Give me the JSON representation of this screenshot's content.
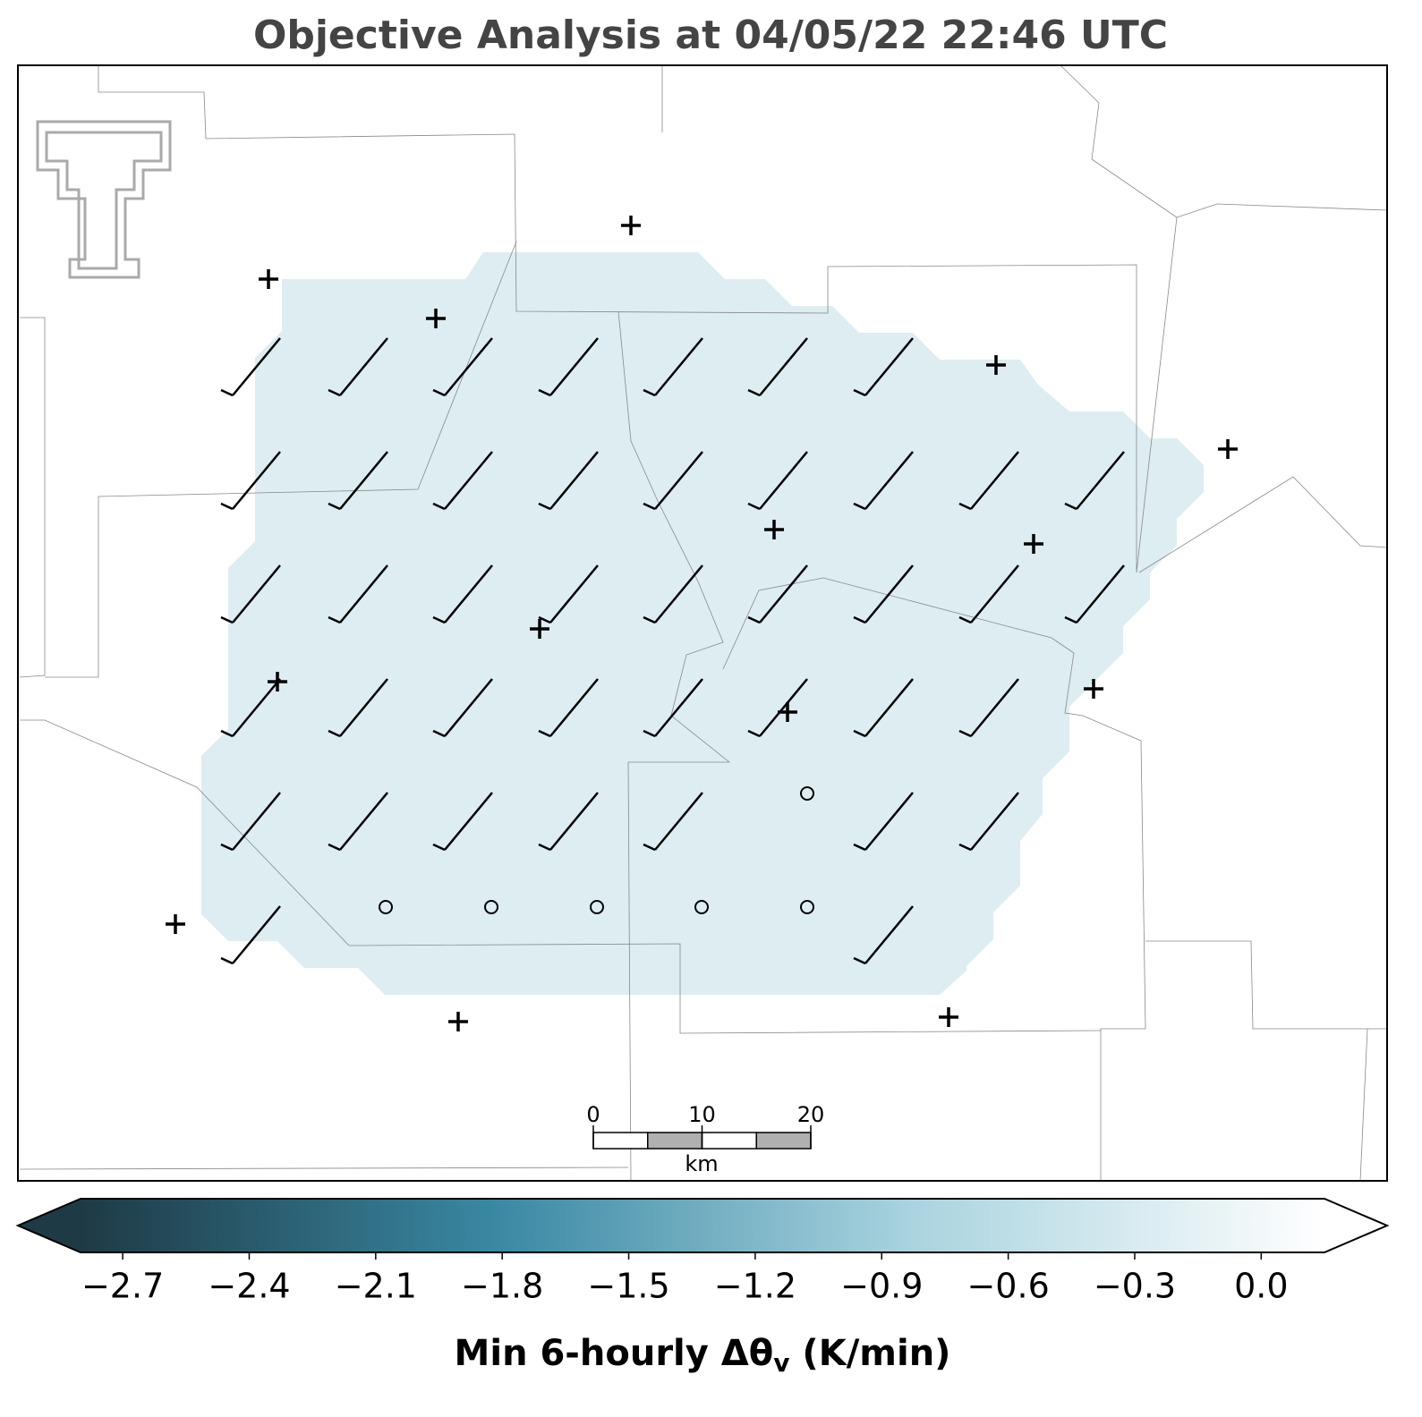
{
  "title": "Objective Analysis at 04/05/22 22:46 UTC",
  "colorbar": {
    "label": [
      "Min 6-hourly Δθ",
      "v",
      " (K/min)"
    ],
    "lim": [
      -2.8,
      0.15
    ],
    "colors": [
      "#1e3a45",
      "#3a88a3",
      "#a9d3df",
      "#ffffff"
    ],
    "extend": "both",
    "ticks": [
      {
        "value": -2.7,
        "label": "−2.7"
      },
      {
        "value": -2.4,
        "label": "−2.4"
      },
      {
        "value": -2.1,
        "label": "−2.1"
      },
      {
        "value": -1.8,
        "label": "−1.8"
      },
      {
        "value": -1.5,
        "label": "−1.5"
      },
      {
        "value": -1.2,
        "label": "−1.2"
      },
      {
        "value": -0.9,
        "label": "−0.9"
      },
      {
        "value": -0.6,
        "label": "−0.6"
      },
      {
        "value": -0.3,
        "label": "−0.3"
      },
      {
        "value": 0,
        "label": "0.0"
      }
    ]
  },
  "scale_bar": {
    "ticks": [
      0,
      10,
      20
    ],
    "unit": "km"
  }
}
